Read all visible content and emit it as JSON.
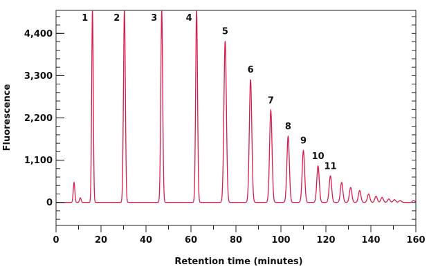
{
  "chart_data": {
    "type": "line",
    "title": "",
    "xlabel": "Retention time (minutes)",
    "ylabel": "Fluorescence",
    "xlim": [
      0,
      160
    ],
    "ylim": [
      -600,
      5000
    ],
    "x_ticks": [
      0,
      20,
      40,
      60,
      80,
      100,
      120,
      140,
      160
    ],
    "x_tick_labels": [
      "0",
      "20",
      "40",
      "60",
      "80",
      "100",
      "120",
      "140",
      "160"
    ],
    "y_ticks": [
      0,
      1100,
      2200,
      3300,
      4400
    ],
    "y_tick_labels": [
      "0",
      "1,100",
      "2,200",
      "3,300",
      "4,400"
    ],
    "grid": false,
    "line_color": "#d81b4a",
    "baseline": 0,
    "peaks": [
      {
        "x": 8.0,
        "y": 520,
        "label": ""
      },
      {
        "x": 10.8,
        "y": 120,
        "label": ""
      },
      {
        "x": 16.2,
        "y": 5000,
        "label": "1"
      },
      {
        "x": 30.4,
        "y": 5000,
        "label": "2"
      },
      {
        "x": 47.0,
        "y": 5000,
        "label": "3"
      },
      {
        "x": 62.5,
        "y": 5000,
        "label": "4"
      },
      {
        "x": 75.2,
        "y": 4200,
        "label": "5"
      },
      {
        "x": 86.5,
        "y": 3200,
        "label": "6"
      },
      {
        "x": 95.5,
        "y": 2400,
        "label": "7"
      },
      {
        "x": 103.2,
        "y": 1720,
        "label": "8"
      },
      {
        "x": 110.0,
        "y": 1350,
        "label": "9"
      },
      {
        "x": 116.5,
        "y": 950,
        "label": "10"
      },
      {
        "x": 122.0,
        "y": 690,
        "label": "11"
      },
      {
        "x": 127.0,
        "y": 520,
        "label": ""
      },
      {
        "x": 131.0,
        "y": 390,
        "label": ""
      },
      {
        "x": 135.0,
        "y": 310,
        "label": ""
      },
      {
        "x": 139.0,
        "y": 220,
        "label": ""
      },
      {
        "x": 142.3,
        "y": 160,
        "label": ""
      },
      {
        "x": 145.0,
        "y": 130,
        "label": ""
      },
      {
        "x": 148.0,
        "y": 90,
        "label": ""
      },
      {
        "x": 150.5,
        "y": 70,
        "label": ""
      },
      {
        "x": 153.0,
        "y": 50,
        "label": ""
      },
      {
        "x": 159.0,
        "y": 50,
        "label": ""
      }
    ]
  }
}
